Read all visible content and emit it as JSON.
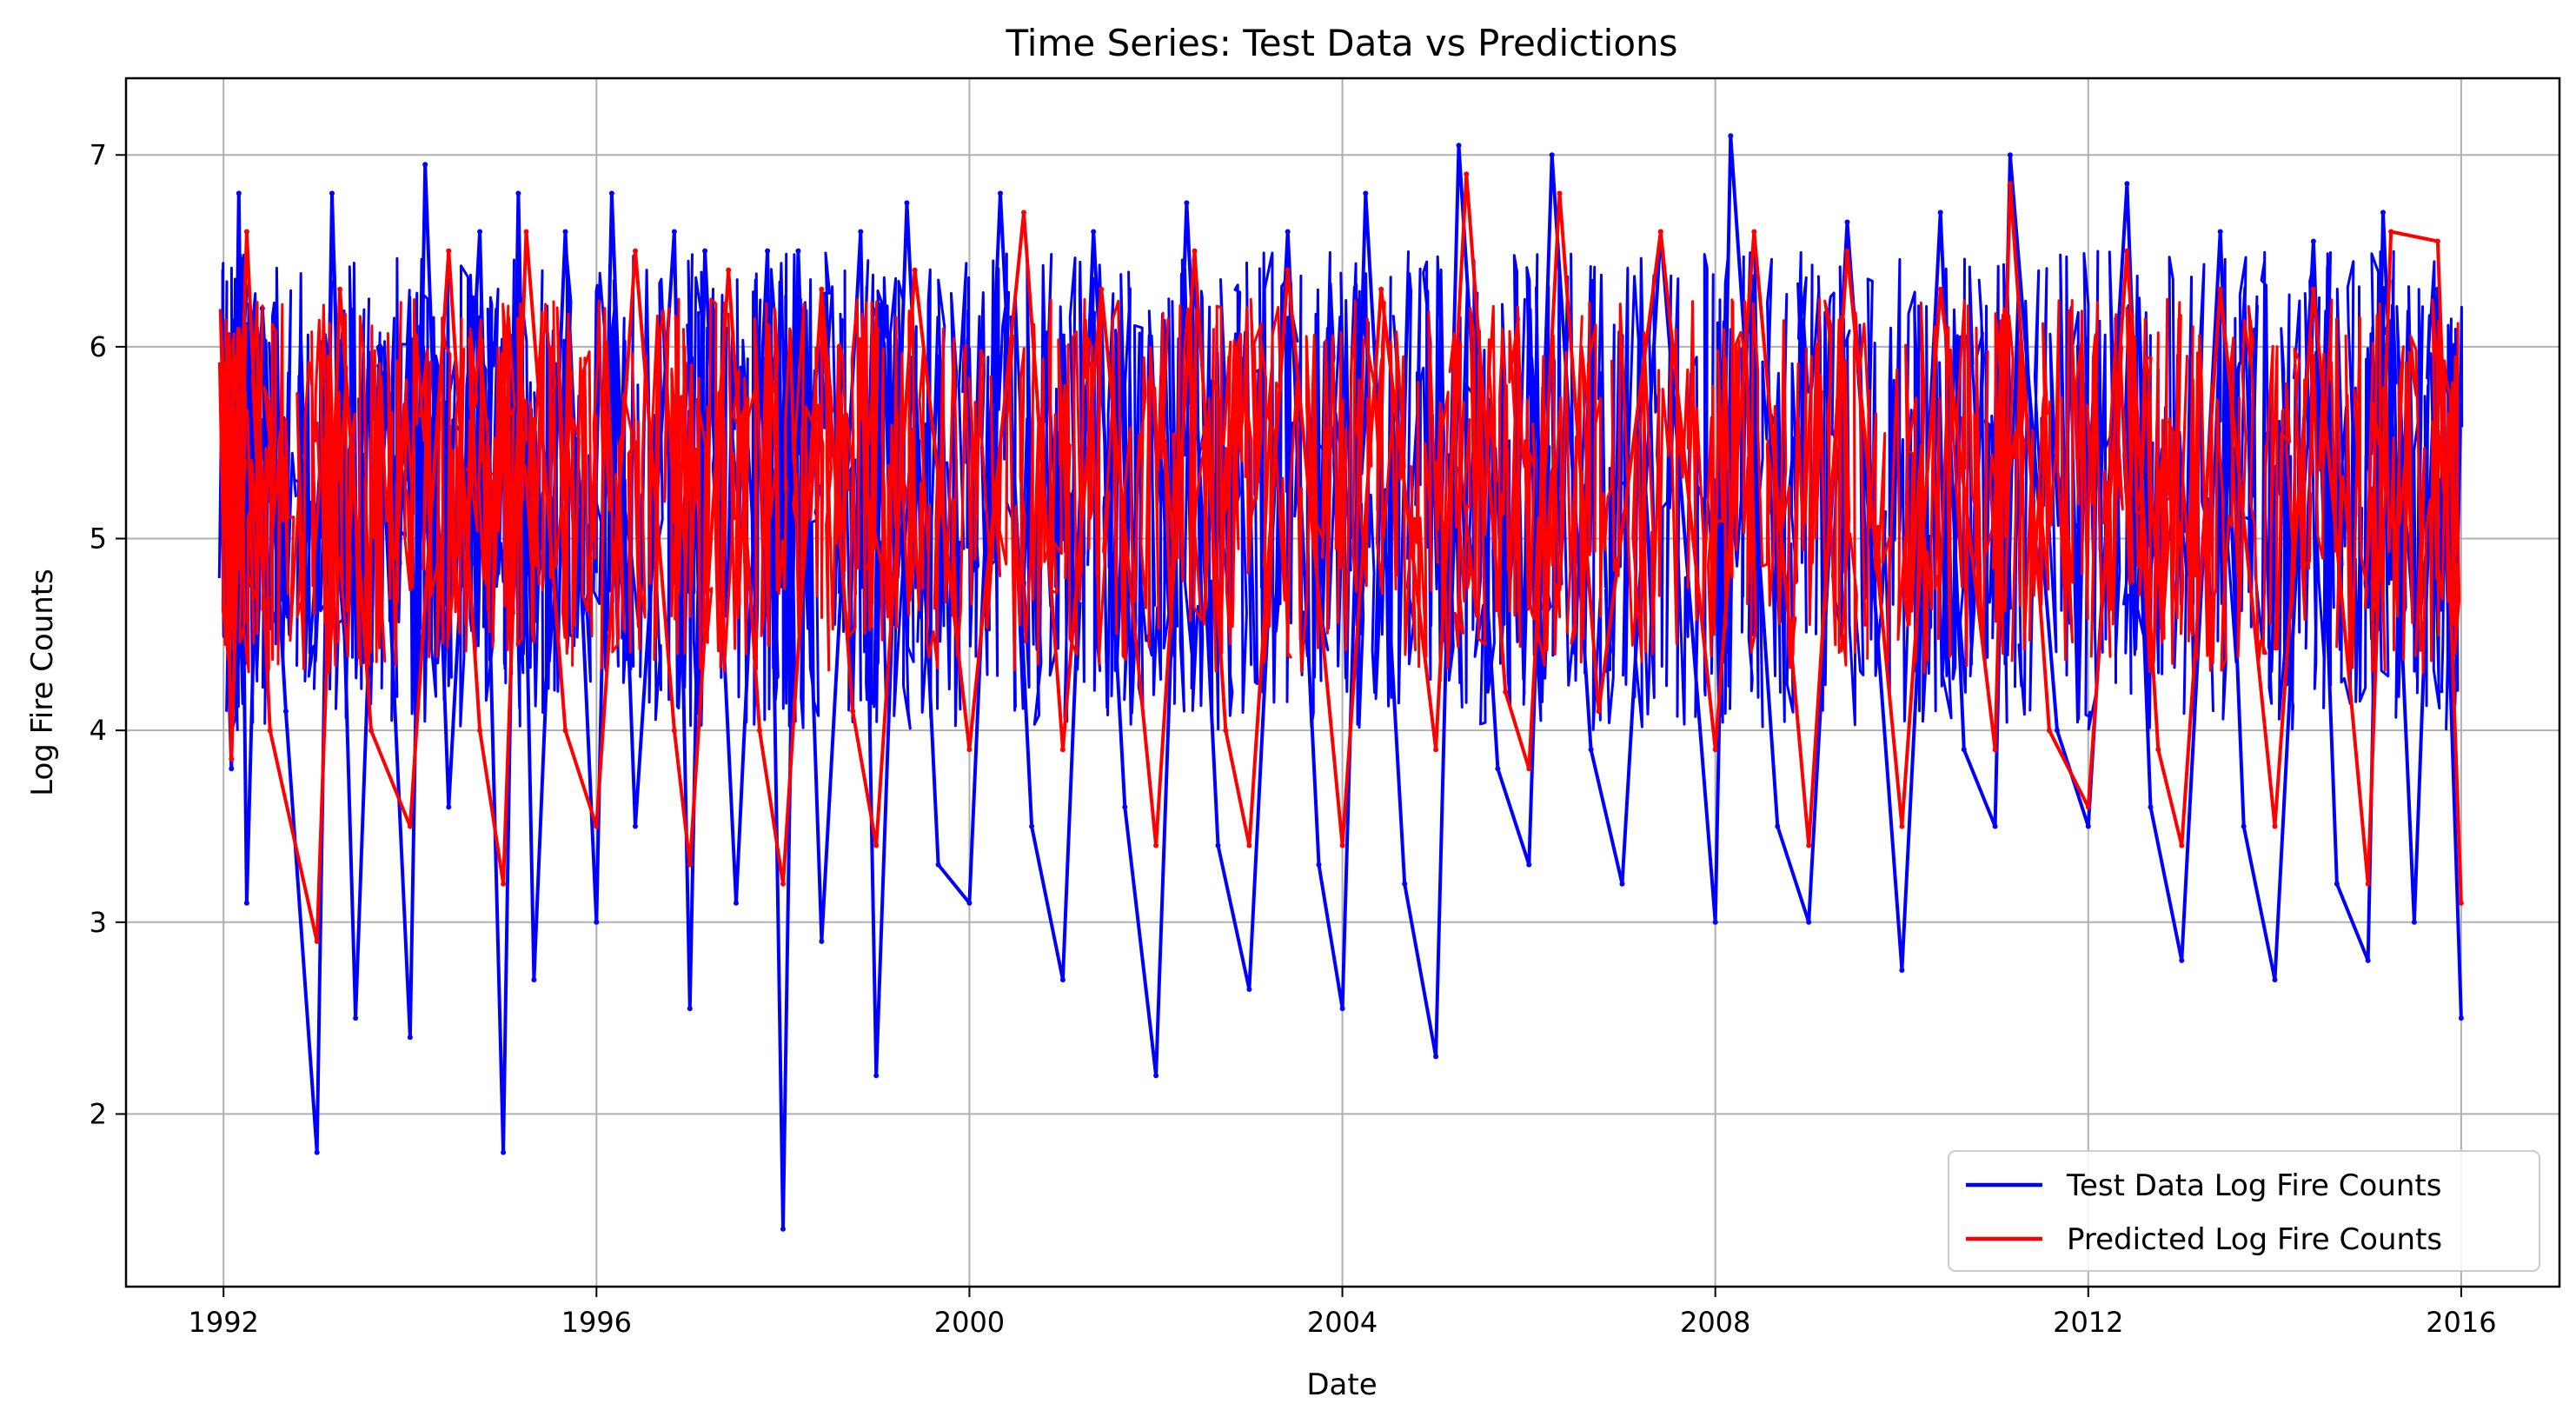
{
  "chart_data": {
    "type": "line",
    "title": "Time Series: Test Data vs Predictions",
    "xlabel": "Date",
    "ylabel": "Log Fire Counts",
    "xlim": [
      "1990-12-15",
      "2017-01-20"
    ],
    "ylim": [
      1.1,
      7.4
    ],
    "xticks": [
      {
        "date": "1992-01-01",
        "label": "1992"
      },
      {
        "date": "1996-01-01",
        "label": "1996"
      },
      {
        "date": "2000-01-01",
        "label": "2000"
      },
      {
        "date": "2004-01-01",
        "label": "2004"
      },
      {
        "date": "2008-01-01",
        "label": "2008"
      },
      {
        "date": "2012-01-01",
        "label": "2012"
      },
      {
        "date": "2016-01-01",
        "label": "2016"
      }
    ],
    "yticks": [
      {
        "value": 2,
        "label": "2"
      },
      {
        "value": 3,
        "label": "3"
      },
      {
        "value": 4,
        "label": "4"
      },
      {
        "value": 5,
        "label": "5"
      },
      {
        "value": 6,
        "label": "6"
      },
      {
        "value": 7,
        "label": "7"
      }
    ],
    "grid": true,
    "legend_position": "lower-right",
    "series": [
      {
        "name": "Test Data Log Fire Counts",
        "color": "#0000ff",
        "points": [
          [
            "1992-01-01",
            5.2
          ],
          [
            "1992-02-01",
            3.8
          ],
          [
            "1992-03-01",
            6.8
          ],
          [
            "1992-04-01",
            3.1
          ],
          [
            "1992-06-01",
            6.2
          ],
          [
            "1992-09-01",
            4.1
          ],
          [
            "1993-01-01",
            1.8
          ],
          [
            "1993-03-01",
            6.8
          ],
          [
            "1993-06-01",
            2.5
          ],
          [
            "1993-09-01",
            5.9
          ],
          [
            "1994-01-01",
            2.4
          ],
          [
            "1994-03-01",
            6.95
          ],
          [
            "1994-06-01",
            3.6
          ],
          [
            "1994-10-01",
            6.6
          ],
          [
            "1995-01-01",
            1.8
          ],
          [
            "1995-03-01",
            6.8
          ],
          [
            "1995-05-01",
            2.7
          ],
          [
            "1995-09-01",
            6.6
          ],
          [
            "1996-01-01",
            3.0
          ],
          [
            "1996-03-01",
            6.8
          ],
          [
            "1996-06-01",
            3.5
          ],
          [
            "1996-11-01",
            6.6
          ],
          [
            "1997-01-01",
            2.55
          ],
          [
            "1997-03-01",
            6.5
          ],
          [
            "1997-07-01",
            3.1
          ],
          [
            "1997-11-01",
            6.5
          ],
          [
            "1998-01-01",
            1.4
          ],
          [
            "1998-03-01",
            6.5
          ],
          [
            "1998-06-01",
            2.9
          ],
          [
            "1998-11-01",
            6.6
          ],
          [
            "1999-01-01",
            2.2
          ],
          [
            "1999-05-01",
            6.75
          ],
          [
            "1999-09-01",
            3.3
          ],
          [
            "2000-01-01",
            3.1
          ],
          [
            "2000-05-01",
            6.8
          ],
          [
            "2000-09-01",
            3.5
          ],
          [
            "2001-01-01",
            2.7
          ],
          [
            "2001-05-01",
            6.6
          ],
          [
            "2001-09-01",
            3.6
          ],
          [
            "2002-01-01",
            2.2
          ],
          [
            "2002-05-01",
            6.75
          ],
          [
            "2002-09-01",
            3.4
          ],
          [
            "2003-01-01",
            2.65
          ],
          [
            "2003-06-01",
            6.6
          ],
          [
            "2003-10-01",
            3.3
          ],
          [
            "2004-01-01",
            2.55
          ],
          [
            "2004-04-01",
            6.8
          ],
          [
            "2004-09-01",
            3.2
          ],
          [
            "2005-01-01",
            2.3
          ],
          [
            "2005-04-01",
            7.05
          ],
          [
            "2005-09-01",
            3.8
          ],
          [
            "2006-01-01",
            3.3
          ],
          [
            "2006-04-01",
            7.0
          ],
          [
            "2006-09-01",
            3.9
          ],
          [
            "2007-01-01",
            3.2
          ],
          [
            "2007-06-01",
            6.6
          ],
          [
            "2008-01-01",
            3.0
          ],
          [
            "2008-03-01",
            7.1
          ],
          [
            "2008-09-01",
            3.5
          ],
          [
            "2009-01-01",
            3.0
          ],
          [
            "2009-06-01",
            6.65
          ],
          [
            "2010-01-01",
            2.75
          ],
          [
            "2010-06-01",
            6.7
          ],
          [
            "2010-09-01",
            3.9
          ],
          [
            "2011-01-01",
            3.5
          ],
          [
            "2011-03-01",
            7.0
          ],
          [
            "2011-09-01",
            4.0
          ],
          [
            "2012-01-01",
            3.5
          ],
          [
            "2012-06-01",
            6.85
          ],
          [
            "2012-09-01",
            3.6
          ],
          [
            "2013-01-01",
            2.8
          ],
          [
            "2013-06-01",
            6.6
          ],
          [
            "2013-09-01",
            3.5
          ],
          [
            "2014-01-01",
            2.7
          ],
          [
            "2014-06-01",
            6.55
          ],
          [
            "2014-09-01",
            3.2
          ],
          [
            "2015-01-01",
            2.8
          ],
          [
            "2015-03-01",
            6.7
          ],
          [
            "2015-07-01",
            3.0
          ],
          [
            "2015-10-01",
            6.3
          ],
          [
            "2016-01-01",
            2.5
          ]
        ]
      },
      {
        "name": "Predicted Log Fire Counts",
        "color": "#ff0000",
        "points": [
          [
            "1992-01-01",
            5.9
          ],
          [
            "1992-02-01",
            3.85
          ],
          [
            "1992-04-01",
            6.6
          ],
          [
            "1992-07-01",
            4.0
          ],
          [
            "1993-01-01",
            2.9
          ],
          [
            "1993-04-01",
            6.3
          ],
          [
            "1993-08-01",
            4.0
          ],
          [
            "1994-01-01",
            3.5
          ],
          [
            "1994-06-01",
            6.5
          ],
          [
            "1994-10-01",
            4.0
          ],
          [
            "1995-01-01",
            3.2
          ],
          [
            "1995-04-01",
            6.6
          ],
          [
            "1995-09-01",
            4.0
          ],
          [
            "1996-01-01",
            3.5
          ],
          [
            "1996-06-01",
            6.5
          ],
          [
            "1996-11-01",
            4.0
          ],
          [
            "1997-01-01",
            3.3
          ],
          [
            "1997-06-01",
            6.4
          ],
          [
            "1997-10-01",
            4.0
          ],
          [
            "1998-01-01",
            3.2
          ],
          [
            "1998-06-01",
            6.3
          ],
          [
            "1998-10-01",
            4.1
          ],
          [
            "1999-01-01",
            3.4
          ],
          [
            "1999-06-01",
            6.4
          ],
          [
            "2000-01-01",
            3.9
          ],
          [
            "2000-08-01",
            6.7
          ],
          [
            "2001-01-01",
            3.9
          ],
          [
            "2001-06-01",
            6.3
          ],
          [
            "2002-01-01",
            3.4
          ],
          [
            "2002-06-01",
            6.5
          ],
          [
            "2002-10-01",
            4.0
          ],
          [
            "2003-01-01",
            3.4
          ],
          [
            "2003-06-01",
            6.4
          ],
          [
            "2004-01-01",
            3.4
          ],
          [
            "2004-06-01",
            6.3
          ],
          [
            "2005-01-01",
            3.9
          ],
          [
            "2005-05-01",
            6.9
          ],
          [
            "2005-10-01",
            4.2
          ],
          [
            "2006-01-01",
            3.8
          ],
          [
            "2006-05-01",
            6.8
          ],
          [
            "2006-10-01",
            4.1
          ],
          [
            "2007-06-01",
            6.6
          ],
          [
            "2008-01-01",
            3.9
          ],
          [
            "2008-06-01",
            6.6
          ],
          [
            "2009-01-01",
            3.4
          ],
          [
            "2009-06-01",
            6.5
          ],
          [
            "2010-01-01",
            3.5
          ],
          [
            "2010-06-01",
            6.3
          ],
          [
            "2011-01-01",
            3.9
          ],
          [
            "2011-03-01",
            6.85
          ],
          [
            "2011-08-01",
            4.0
          ],
          [
            "2012-01-01",
            3.6
          ],
          [
            "2012-06-01",
            6.5
          ],
          [
            "2012-10-01",
            3.9
          ],
          [
            "2013-01-01",
            3.4
          ],
          [
            "2013-06-01",
            6.3
          ],
          [
            "2014-01-01",
            3.5
          ],
          [
            "2014-06-01",
            6.3
          ],
          [
            "2015-01-01",
            3.2
          ],
          [
            "2015-04-01",
            6.6
          ],
          [
            "2015-10-01",
            6.55
          ],
          [
            "2016-01-01",
            3.1
          ]
        ]
      }
    ]
  }
}
